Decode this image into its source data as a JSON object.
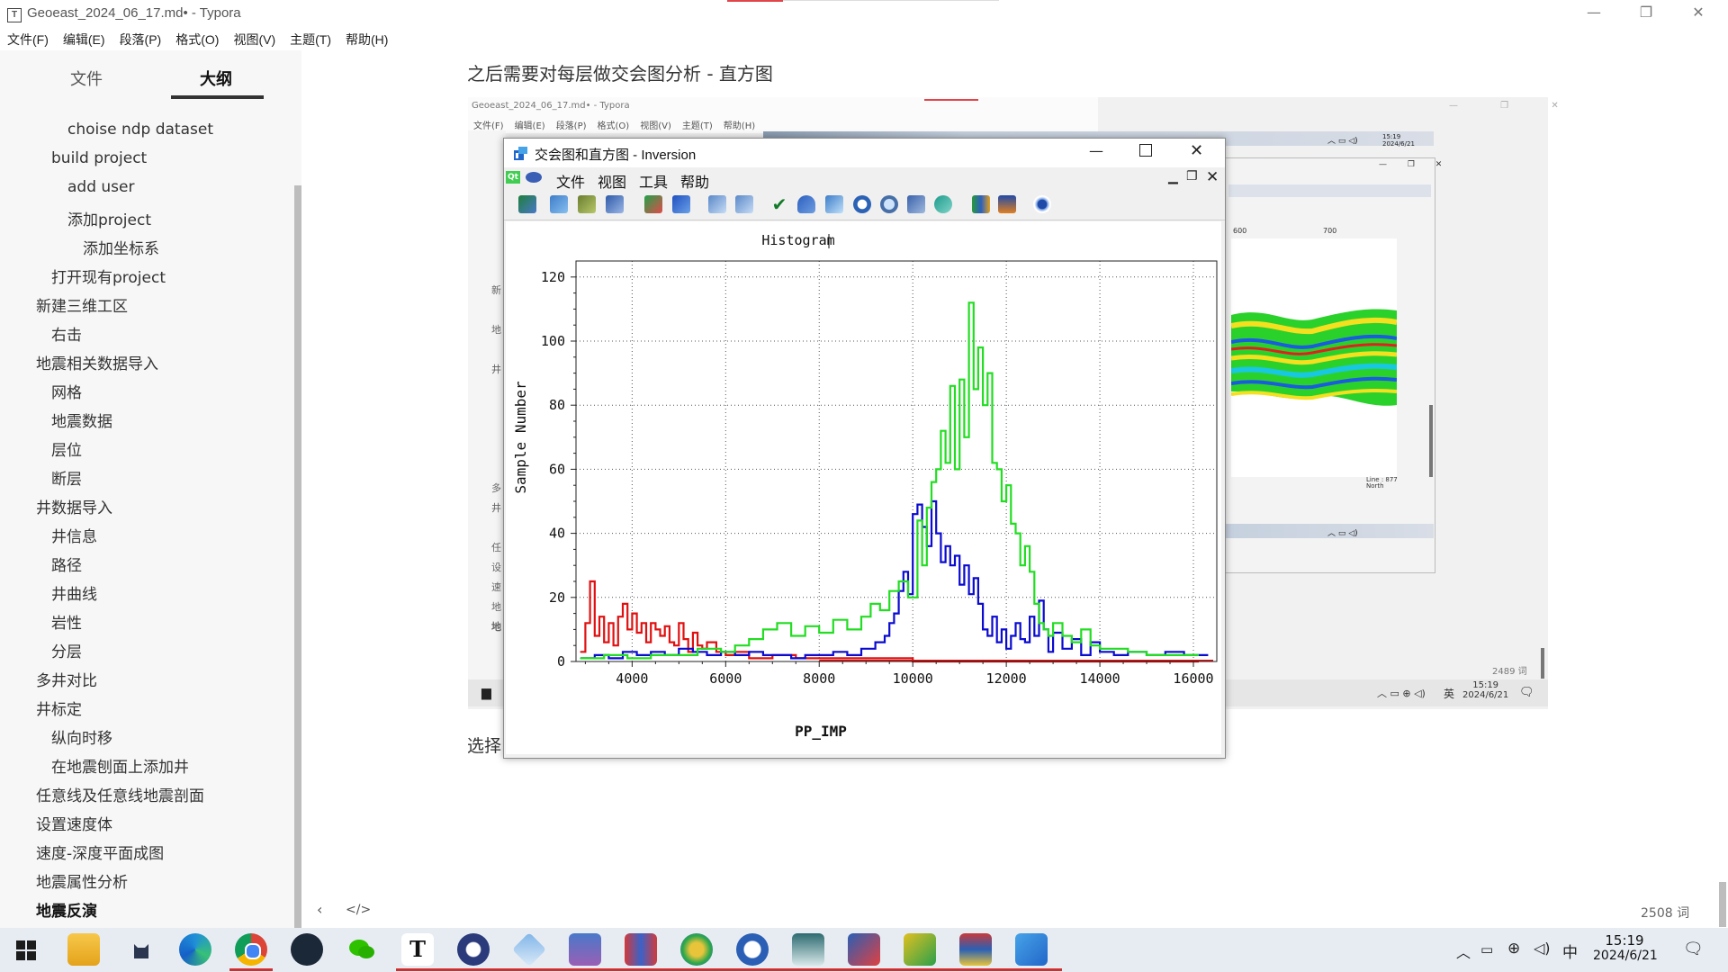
{
  "window": {
    "title": "Geoeast_2024_06_17.md• - Typora",
    "app_icon": "T"
  },
  "menu": [
    "文件(F)",
    "编辑(E)",
    "段落(P)",
    "格式(O)",
    "视图(V)",
    "主题(T)",
    "帮助(H)"
  ],
  "sidebar": {
    "tabs": [
      "文件",
      "大纲"
    ],
    "active_tab": "大纲",
    "outline": [
      {
        "label": "choise ndp dataset",
        "level": 3
      },
      {
        "label": "build project",
        "level": 2
      },
      {
        "label": "add user",
        "level": 3
      },
      {
        "label": "添加project",
        "level": 3
      },
      {
        "label": "添加坐标系",
        "level": 4
      },
      {
        "label": "打开现有project",
        "level": 2
      },
      {
        "label": "新建三维工区",
        "level": 1
      },
      {
        "label": "右击",
        "level": 2
      },
      {
        "label": "地震相关数据导入",
        "level": 1
      },
      {
        "label": "网格",
        "level": 2
      },
      {
        "label": "地震数据",
        "level": 2
      },
      {
        "label": "层位",
        "level": 2
      },
      {
        "label": "断层",
        "level": 2
      },
      {
        "label": "井数据导入",
        "level": 1
      },
      {
        "label": "井信息",
        "level": 2
      },
      {
        "label": "路径",
        "level": 2
      },
      {
        "label": "井曲线",
        "level": 2
      },
      {
        "label": "岩性",
        "level": 2
      },
      {
        "label": "分层",
        "level": 2
      },
      {
        "label": "多井对比",
        "level": 1
      },
      {
        "label": "井标定",
        "level": 1
      },
      {
        "label": "纵向时移",
        "level": 2
      },
      {
        "label": "在地震刨面上添加井",
        "level": 2
      },
      {
        "label": "任意线及任意线地震剖面",
        "level": 1
      },
      {
        "label": "设置速度体",
        "level": 1
      },
      {
        "label": "速度-深度平面成图",
        "level": 1
      },
      {
        "label": "地震属性分析",
        "level": 1
      },
      {
        "label": "地震反演",
        "level": 1,
        "bold": true
      }
    ]
  },
  "doc": {
    "heading_text": "之后需要对每层做交会图分析 - 直方图",
    "partial_text": "选择",
    "word_count": "2508 词"
  },
  "embedded": {
    "title": "Geoeast_2024_06_17.md• - Typora",
    "menu": [
      "文件(F)",
      "编辑(E)",
      "段落(P)",
      "格式(O)",
      "视图(V)",
      "主题(T)",
      "帮助(H)"
    ],
    "word_count": "2489 词",
    "clock_time": "15:19",
    "clock_date": "2024/6/21",
    "ime": "英",
    "line_label": "Line : 877",
    "north_label": "North",
    "ruler": [
      "600",
      "700"
    ]
  },
  "inversion_window": {
    "title": "交会图和直方图 - Inversion",
    "menu": [
      "文件",
      "视图",
      "工具",
      "帮助"
    ],
    "qt_badge": "Qt"
  },
  "chart_data": {
    "type": "line",
    "title": "Histogram",
    "xlabel": "PP_IMP",
    "ylabel": "Sample Number",
    "xlim": [
      2800,
      16500
    ],
    "ylim": [
      0,
      125
    ],
    "xticks": [
      4000,
      6000,
      8000,
      10000,
      12000,
      14000,
      16000
    ],
    "yticks": [
      0,
      20,
      40,
      60,
      80,
      100,
      120
    ],
    "grid": true,
    "step": true,
    "series": [
      {
        "color": "#e01010",
        "x": [
          2900,
          3000,
          3100,
          3200,
          3300,
          3400,
          3500,
          3600,
          3700,
          3800,
          3900,
          4000,
          4100,
          4200,
          4300,
          4400,
          4500,
          4600,
          4700,
          4800,
          4900,
          5000,
          5100,
          5200,
          5300,
          5400,
          5500,
          5600,
          5800,
          6000,
          6200,
          6500,
          7000,
          7500,
          8000,
          9000,
          10000,
          12000,
          14000,
          16000
        ],
        "y": [
          3,
          12,
          25,
          8,
          14,
          6,
          12,
          5,
          14,
          18,
          10,
          15,
          9,
          12,
          6,
          12,
          10,
          8,
          11,
          6,
          5,
          12,
          7,
          3,
          9,
          5,
          4,
          6,
          3,
          2,
          3,
          1,
          2,
          1,
          1,
          1,
          0,
          0,
          0,
          0
        ]
      },
      {
        "color": "#0a0ad0",
        "x": [
          2900,
          3200,
          3500,
          3800,
          4100,
          4400,
          4700,
          5000,
          5300,
          5600,
          5900,
          6200,
          6500,
          6800,
          7100,
          7400,
          7700,
          8000,
          8300,
          8600,
          8900,
          9200,
          9400,
          9500,
          9600,
          9700,
          9800,
          9900,
          10000,
          10100,
          10200,
          10300,
          10400,
          10500,
          10600,
          10700,
          10800,
          10900,
          11000,
          11100,
          11200,
          11300,
          11400,
          11500,
          11600,
          11700,
          11800,
          11900,
          12000,
          12100,
          12200,
          12300,
          12400,
          12500,
          12600,
          12700,
          12800,
          12900,
          13000,
          13200,
          13400,
          13600,
          13800,
          14000,
          14300,
          14600,
          15000,
          15400,
          15800,
          16200
        ],
        "y": [
          1,
          2,
          1,
          3,
          2,
          3,
          2,
          4,
          3,
          2,
          3,
          2,
          3,
          2,
          2,
          1,
          2,
          2,
          3,
          2,
          4,
          6,
          8,
          12,
          15,
          22,
          28,
          21,
          46,
          49,
          42,
          36,
          50,
          40,
          31,
          36,
          30,
          33,
          24,
          30,
          21,
          26,
          18,
          10,
          8,
          14,
          6,
          10,
          4,
          8,
          12,
          7,
          6,
          14,
          8,
          19,
          10,
          3,
          9,
          4,
          7,
          2,
          6,
          3,
          2,
          3,
          2,
          3,
          2,
          2
        ]
      },
      {
        "color": "#22dd22",
        "x": [
          2900,
          3400,
          3900,
          4400,
          4900,
          5400,
          5900,
          6200,
          6500,
          6800,
          7100,
          7400,
          7700,
          8000,
          8300,
          8600,
          8900,
          9100,
          9300,
          9500,
          9700,
          9900,
          10100,
          10200,
          10300,
          10400,
          10500,
          10600,
          10700,
          10800,
          10900,
          11000,
          11100,
          11200,
          11300,
          11400,
          11500,
          11600,
          11700,
          11800,
          11900,
          12000,
          12100,
          12200,
          12300,
          12400,
          12500,
          12600,
          12700,
          12800,
          12900,
          13000,
          13200,
          13400,
          13600,
          13800,
          14000,
          14300,
          14600,
          15000,
          15400,
          16000
        ],
        "y": [
          1,
          2,
          1,
          2,
          2,
          4,
          3,
          5,
          7,
          10,
          12,
          8,
          11,
          9,
          13,
          10,
          14,
          18,
          16,
          22,
          25,
          20,
          44,
          30,
          48,
          56,
          60,
          72,
          62,
          86,
          60,
          88,
          70,
          112,
          85,
          98,
          80,
          90,
          62,
          60,
          50,
          55,
          43,
          40,
          30,
          36,
          28,
          18,
          12,
          10,
          8,
          12,
          8,
          6,
          10,
          5,
          4,
          4,
          3,
          2,
          2,
          2
        ]
      }
    ]
  },
  "taskbar": {
    "apps": [
      "start",
      "file-explorer",
      "app-cat",
      "edge",
      "chrome",
      "steam",
      "wechat",
      "typora",
      "geoeast",
      "app-diamond",
      "app-castle",
      "app-bars",
      "app-green",
      "app-zoom",
      "app-window",
      "app-chart",
      "app-map",
      "app-layers",
      "app-inversion"
    ],
    "clock_time": "15:19",
    "clock_date": "2024/6/21",
    "ime": "中"
  }
}
